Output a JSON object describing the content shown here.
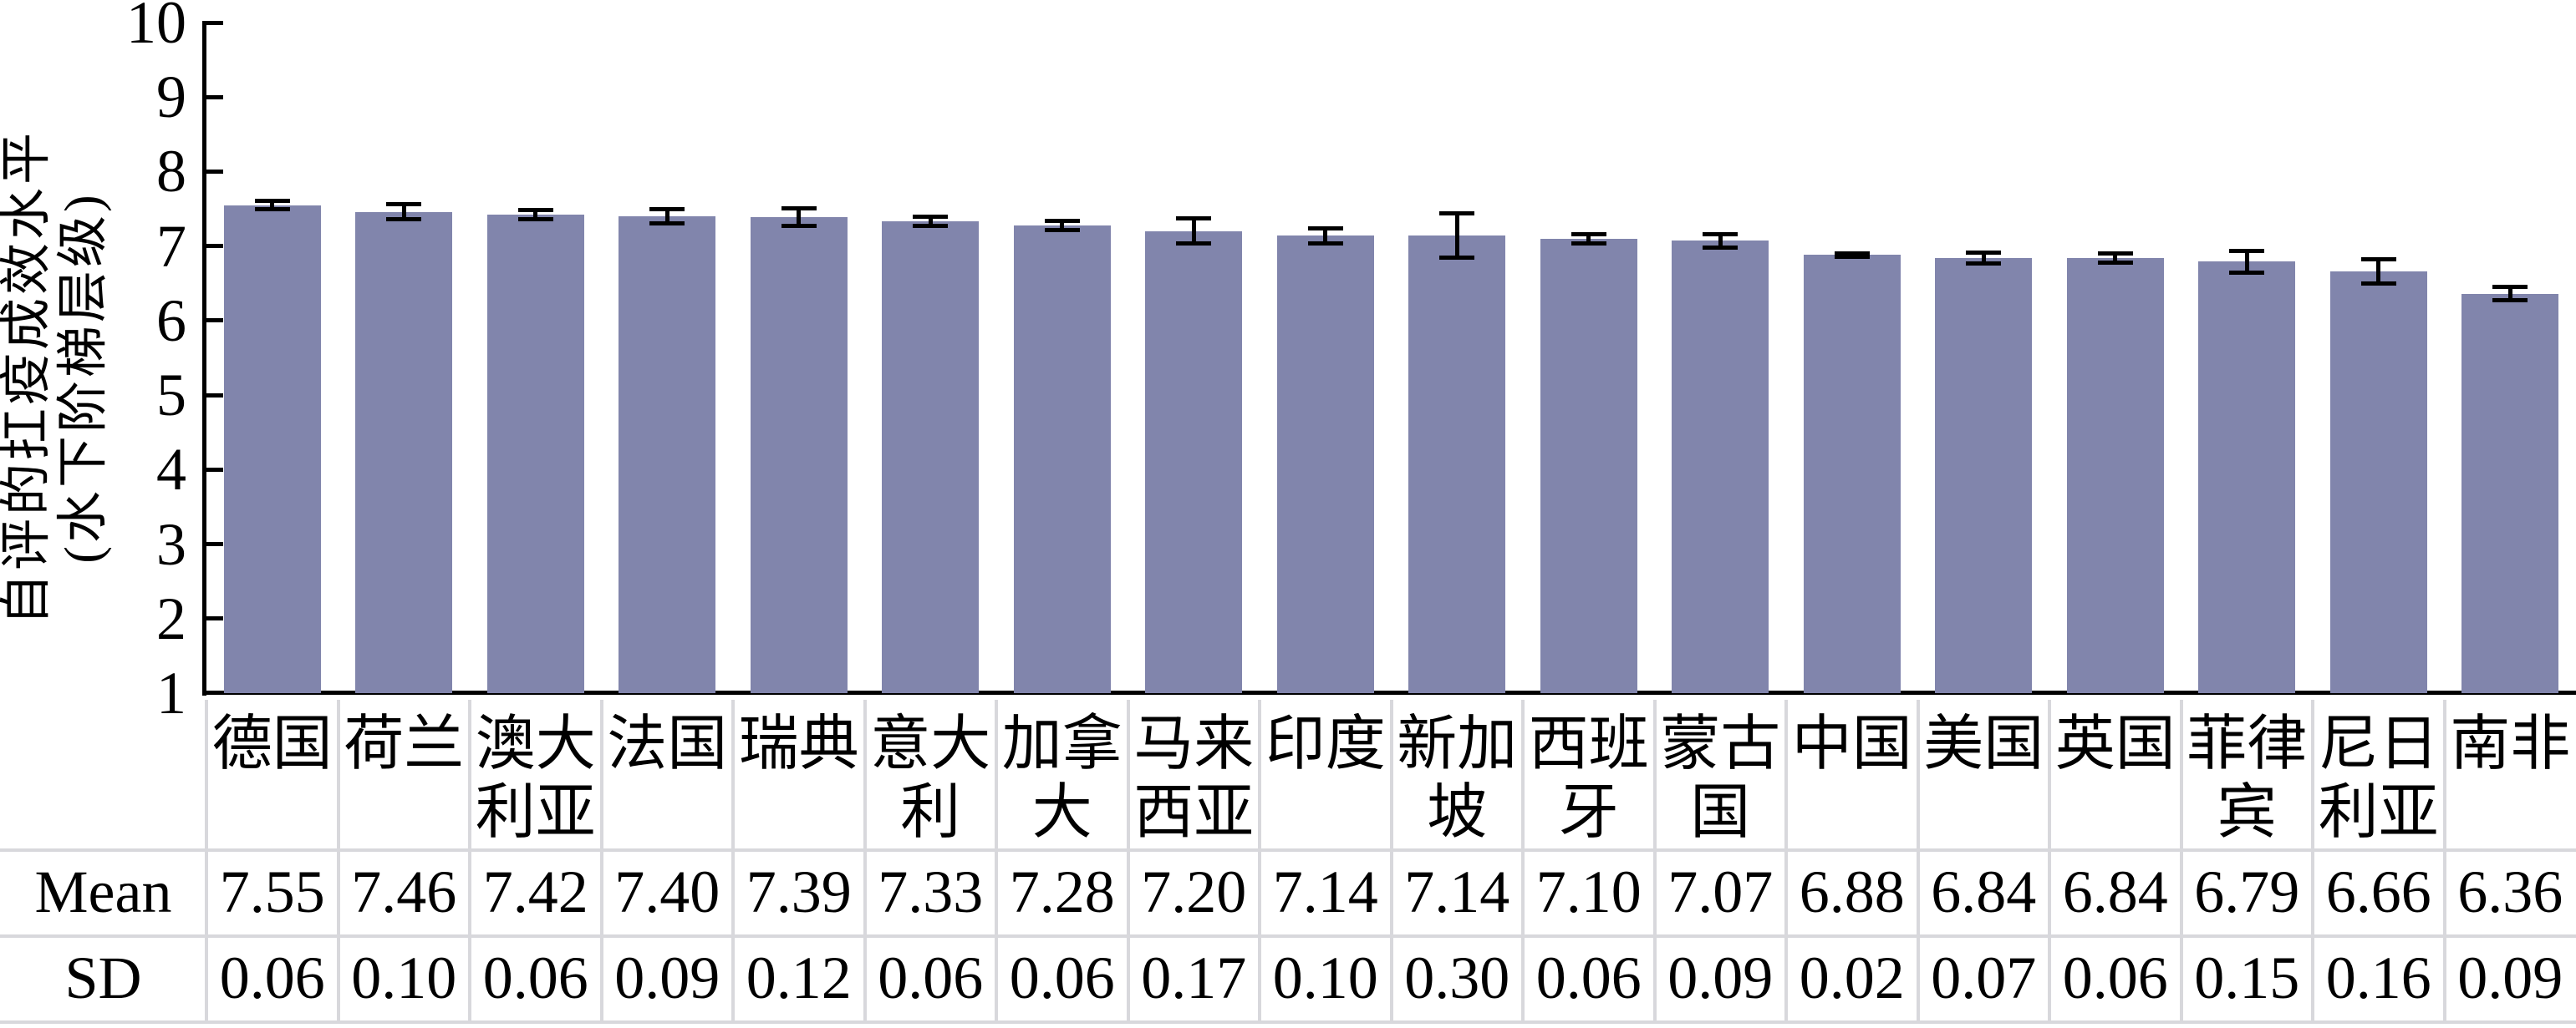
{
  "chart_data": {
    "type": "bar",
    "title": "",
    "ylabel_lines": [
      "自评的扛疫成效水平",
      "(水下阶梯层级)"
    ],
    "ylim": [
      1,
      10
    ],
    "yticks": [
      1,
      2,
      3,
      4,
      5,
      6,
      7,
      8,
      9,
      10
    ],
    "categories": [
      "德国",
      "荷兰",
      "澳大利亚",
      "法国",
      "瑞典",
      "意大利",
      "加拿大",
      "马来西亚",
      "印度",
      "新加坡",
      "西班牙",
      "蒙古国",
      "中国",
      "美国",
      "英国",
      "菲律宾",
      "尼日利亚",
      "南非"
    ],
    "series": [
      {
        "name": "Mean",
        "values": [
          7.55,
          7.46,
          7.42,
          7.4,
          7.39,
          7.33,
          7.28,
          7.2,
          7.14,
          7.14,
          7.1,
          7.07,
          6.88,
          6.84,
          6.84,
          6.79,
          6.66,
          6.36
        ]
      },
      {
        "name": "SD",
        "values": [
          0.06,
          0.1,
          0.06,
          0.09,
          0.12,
          0.06,
          0.06,
          0.17,
          0.1,
          0.3,
          0.06,
          0.09,
          0.02,
          0.07,
          0.06,
          0.15,
          0.16,
          0.09
        ]
      }
    ],
    "error_bar_rule": "mean ± SD",
    "colors": {
      "bar": "#8185AC",
      "axis": "#000000",
      "grid": "#D8D8DC"
    },
    "legend_position": "none",
    "gridlines": "off"
  }
}
